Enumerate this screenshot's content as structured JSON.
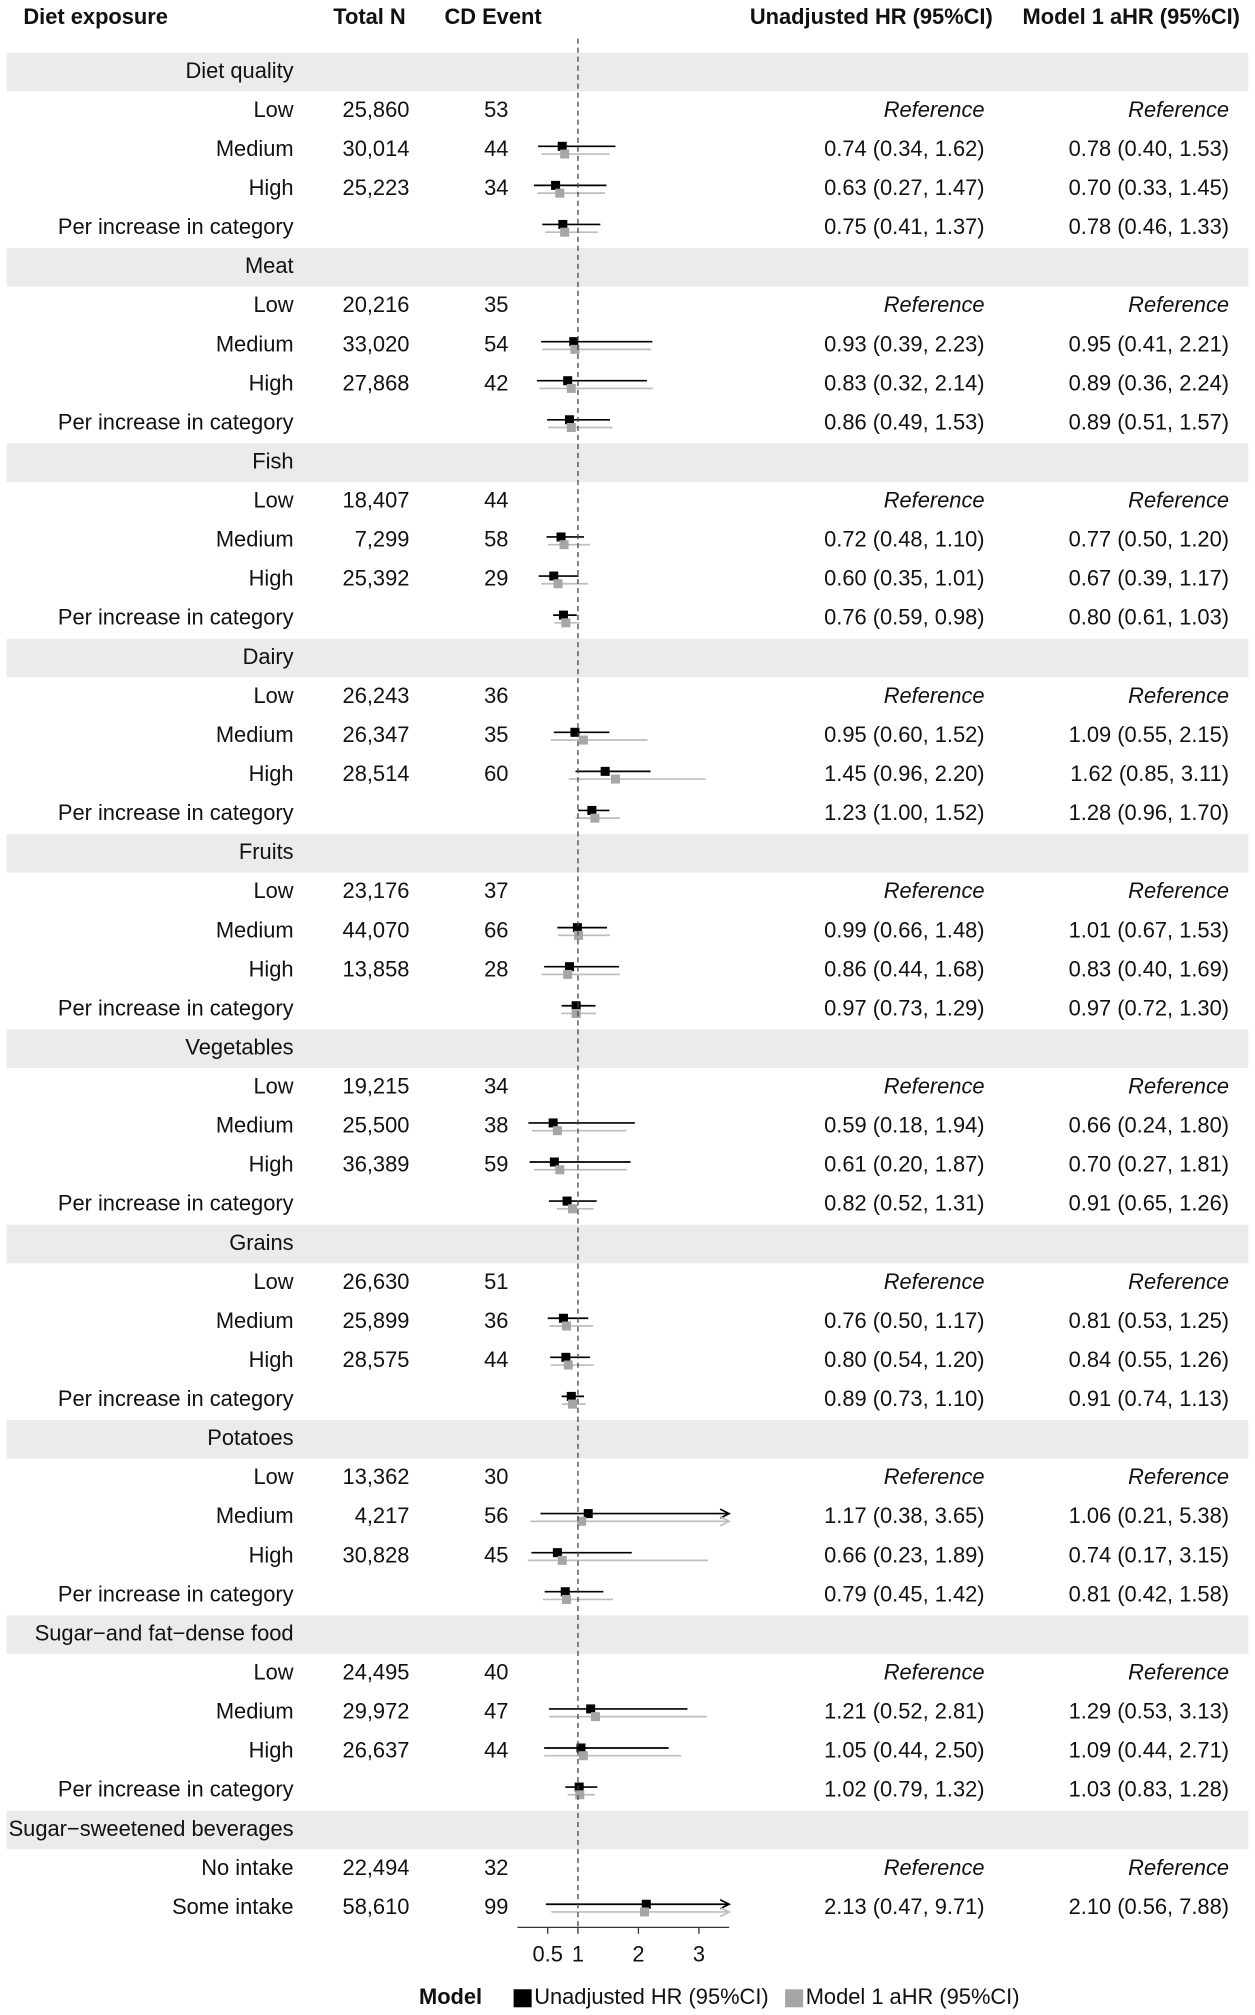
{
  "chart_data": {
    "type": "forest",
    "columns": [
      "Diet exposure",
      "Total N",
      "CD Event"
    ],
    "series": [
      {
        "name": "Unadjusted HR (95%CI)",
        "color": "#000000"
      },
      {
        "name": "Model 1 aHR (95%CI)",
        "color": "#a6a6a6"
      }
    ],
    "legend_title": "Model",
    "xlim": [
      0,
      3.5
    ],
    "xticks": [
      0.5,
      1,
      2,
      3
    ],
    "ref_line": 1,
    "groups": [
      {
        "name": "Diet quality",
        "rows": [
          {
            "label": "Low",
            "n": {
              "value": 25860,
              "label": "25,860"
            },
            "events": 53,
            "est": [
              {
                "label": "Reference"
              },
              {
                "label": "Reference"
              }
            ]
          },
          {
            "label": "Medium",
            "n": {
              "value": 30014,
              "label": "30,014"
            },
            "events": 44,
            "est": [
              {
                "hr": 0.74,
                "lo": 0.34,
                "hi": 1.62,
                "label": "0.74 (0.34, 1.62)"
              },
              {
                "hr": 0.78,
                "lo": 0.4,
                "hi": 1.53,
                "label": "0.78 (0.40, 1.53)"
              }
            ]
          },
          {
            "label": "High",
            "n": {
              "value": 25223,
              "label": "25,223"
            },
            "events": 34,
            "est": [
              {
                "hr": 0.63,
                "lo": 0.27,
                "hi": 1.47,
                "label": "0.63 (0.27, 1.47)"
              },
              {
                "hr": 0.7,
                "lo": 0.33,
                "hi": 1.45,
                "label": "0.70 (0.33, 1.45)"
              }
            ]
          },
          {
            "label": "Per increase in category",
            "est": [
              {
                "hr": 0.75,
                "lo": 0.41,
                "hi": 1.37,
                "label": "0.75 (0.41, 1.37)"
              },
              {
                "hr": 0.78,
                "lo": 0.46,
                "hi": 1.33,
                "label": "0.78 (0.46, 1.33)"
              }
            ]
          }
        ]
      },
      {
        "name": "Meat",
        "rows": [
          {
            "label": "Low",
            "n": {
              "value": 20216,
              "label": "20,216"
            },
            "events": 35,
            "est": [
              {
                "label": "Reference"
              },
              {
                "label": "Reference"
              }
            ]
          },
          {
            "label": "Medium",
            "n": {
              "value": 33020,
              "label": "33,020"
            },
            "events": 54,
            "est": [
              {
                "hr": 0.93,
                "lo": 0.39,
                "hi": 2.23,
                "label": "0.93 (0.39, 2.23)"
              },
              {
                "hr": 0.95,
                "lo": 0.41,
                "hi": 2.21,
                "label": "0.95 (0.41, 2.21)"
              }
            ]
          },
          {
            "label": "High",
            "n": {
              "value": 27868,
              "label": "27,868"
            },
            "events": 42,
            "est": [
              {
                "hr": 0.83,
                "lo": 0.32,
                "hi": 2.14,
                "label": "0.83 (0.32, 2.14)"
              },
              {
                "hr": 0.89,
                "lo": 0.36,
                "hi": 2.24,
                "label": "0.89 (0.36, 2.24)"
              }
            ]
          },
          {
            "label": "Per increase in category",
            "est": [
              {
                "hr": 0.86,
                "lo": 0.49,
                "hi": 1.53,
                "label": "0.86 (0.49, 1.53)"
              },
              {
                "hr": 0.89,
                "lo": 0.51,
                "hi": 1.57,
                "label": "0.89 (0.51, 1.57)"
              }
            ]
          }
        ]
      },
      {
        "name": "Fish",
        "rows": [
          {
            "label": "Low",
            "n": {
              "value": 18407,
              "label": "18,407"
            },
            "events": 44,
            "est": [
              {
                "label": "Reference"
              },
              {
                "label": "Reference"
              }
            ]
          },
          {
            "label": "Medium",
            "n": {
              "value": 7299,
              "label": "7,299"
            },
            "events": 58,
            "est": [
              {
                "hr": 0.72,
                "lo": 0.48,
                "hi": 1.1,
                "label": "0.72 (0.48, 1.10)"
              },
              {
                "hr": 0.77,
                "lo": 0.5,
                "hi": 1.2,
                "label": "0.77 (0.50, 1.20)"
              }
            ]
          },
          {
            "label": "High",
            "n": {
              "value": 25392,
              "label": "25,392"
            },
            "events": 29,
            "est": [
              {
                "hr": 0.6,
                "lo": 0.35,
                "hi": 1.01,
                "label": "0.60 (0.35, 1.01)"
              },
              {
                "hr": 0.67,
                "lo": 0.39,
                "hi": 1.17,
                "label": "0.67 (0.39, 1.17)"
              }
            ]
          },
          {
            "label": "Per increase in category",
            "est": [
              {
                "hr": 0.76,
                "lo": 0.59,
                "hi": 0.98,
                "label": "0.76 (0.59, 0.98)"
              },
              {
                "hr": 0.8,
                "lo": 0.61,
                "hi": 1.03,
                "label": "0.80 (0.61, 1.03)"
              }
            ]
          }
        ]
      },
      {
        "name": "Dairy",
        "rows": [
          {
            "label": "Low",
            "n": {
              "value": 26243,
              "label": "26,243"
            },
            "events": 36,
            "est": [
              {
                "label": "Reference"
              },
              {
                "label": "Reference"
              }
            ]
          },
          {
            "label": "Medium",
            "n": {
              "value": 26347,
              "label": "26,347"
            },
            "events": 35,
            "est": [
              {
                "hr": 0.95,
                "lo": 0.6,
                "hi": 1.52,
                "label": "0.95 (0.60, 1.52)"
              },
              {
                "hr": 1.09,
                "lo": 0.55,
                "hi": 2.15,
                "label": "1.09 (0.55, 2.15)"
              }
            ]
          },
          {
            "label": "High",
            "n": {
              "value": 28514,
              "label": "28,514"
            },
            "events": 60,
            "est": [
              {
                "hr": 1.45,
                "lo": 0.96,
                "hi": 2.2,
                "label": "1.45 (0.96, 2.20)"
              },
              {
                "hr": 1.62,
                "lo": 0.85,
                "hi": 3.11,
                "label": "1.62 (0.85, 3.11)"
              }
            ]
          },
          {
            "label": "Per increase in category",
            "est": [
              {
                "hr": 1.23,
                "lo": 1.0,
                "hi": 1.52,
                "label": "1.23 (1.00, 1.52)"
              },
              {
                "hr": 1.28,
                "lo": 0.96,
                "hi": 1.7,
                "label": "1.28 (0.96, 1.70)"
              }
            ]
          }
        ]
      },
      {
        "name": "Fruits",
        "rows": [
          {
            "label": "Low",
            "n": {
              "value": 23176,
              "label": "23,176"
            },
            "events": 37,
            "est": [
              {
                "label": "Reference"
              },
              {
                "label": "Reference"
              }
            ]
          },
          {
            "label": "Medium",
            "n": {
              "value": 44070,
              "label": "44,070"
            },
            "events": 66,
            "est": [
              {
                "hr": 0.99,
                "lo": 0.66,
                "hi": 1.48,
                "label": "0.99 (0.66, 1.48)"
              },
              {
                "hr": 1.01,
                "lo": 0.67,
                "hi": 1.53,
                "label": "1.01 (0.67, 1.53)"
              }
            ]
          },
          {
            "label": "High",
            "n": {
              "value": 13858,
              "label": "13,858"
            },
            "events": 28,
            "est": [
              {
                "hr": 0.86,
                "lo": 0.44,
                "hi": 1.68,
                "label": "0.86 (0.44, 1.68)"
              },
              {
                "hr": 0.83,
                "lo": 0.4,
                "hi": 1.69,
                "label": "0.83 (0.40, 1.69)"
              }
            ]
          },
          {
            "label": "Per increase in category",
            "est": [
              {
                "hr": 0.97,
                "lo": 0.73,
                "hi": 1.29,
                "label": "0.97 (0.73, 1.29)"
              },
              {
                "hr": 0.97,
                "lo": 0.72,
                "hi": 1.3,
                "label": "0.97 (0.72, 1.30)"
              }
            ]
          }
        ]
      },
      {
        "name": "Vegetables",
        "rows": [
          {
            "label": "Low",
            "n": {
              "value": 19215,
              "label": "19,215"
            },
            "events": 34,
            "est": [
              {
                "label": "Reference"
              },
              {
                "label": "Reference"
              }
            ]
          },
          {
            "label": "Medium",
            "n": {
              "value": 25500,
              "label": "25,500"
            },
            "events": 38,
            "est": [
              {
                "hr": 0.59,
                "lo": 0.18,
                "hi": 1.94,
                "label": "0.59 (0.18, 1.94)"
              },
              {
                "hr": 0.66,
                "lo": 0.24,
                "hi": 1.8,
                "label": "0.66 (0.24, 1.80)"
              }
            ]
          },
          {
            "label": "High",
            "n": {
              "value": 36389,
              "label": "36,389"
            },
            "events": 59,
            "est": [
              {
                "hr": 0.61,
                "lo": 0.2,
                "hi": 1.87,
                "label": "0.61 (0.20, 1.87)"
              },
              {
                "hr": 0.7,
                "lo": 0.27,
                "hi": 1.81,
                "label": "0.70 (0.27, 1.81)"
              }
            ]
          },
          {
            "label": "Per increase in category",
            "est": [
              {
                "hr": 0.82,
                "lo": 0.52,
                "hi": 1.31,
                "label": "0.82 (0.52, 1.31)"
              },
              {
                "hr": 0.91,
                "lo": 0.65,
                "hi": 1.26,
                "label": "0.91 (0.65, 1.26)"
              }
            ]
          }
        ]
      },
      {
        "name": "Grains",
        "rows": [
          {
            "label": "Low",
            "n": {
              "value": 26630,
              "label": "26,630"
            },
            "events": 51,
            "est": [
              {
                "label": "Reference"
              },
              {
                "label": "Reference"
              }
            ]
          },
          {
            "label": "Medium",
            "n": {
              "value": 25899,
              "label": "25,899"
            },
            "events": 36,
            "est": [
              {
                "hr": 0.76,
                "lo": 0.5,
                "hi": 1.17,
                "label": "0.76 (0.50, 1.17)"
              },
              {
                "hr": 0.81,
                "lo": 0.53,
                "hi": 1.25,
                "label": "0.81 (0.53, 1.25)"
              }
            ]
          },
          {
            "label": "High",
            "n": {
              "value": 28575,
              "label": "28,575"
            },
            "events": 44,
            "est": [
              {
                "hr": 0.8,
                "lo": 0.54,
                "hi": 1.2,
                "label": "0.80 (0.54, 1.20)"
              },
              {
                "hr": 0.84,
                "lo": 0.55,
                "hi": 1.26,
                "label": "0.84 (0.55, 1.26)"
              }
            ]
          },
          {
            "label": "Per increase in category",
            "est": [
              {
                "hr": 0.89,
                "lo": 0.73,
                "hi": 1.1,
                "label": "0.89 (0.73, 1.10)"
              },
              {
                "hr": 0.91,
                "lo": 0.74,
                "hi": 1.13,
                "label": "0.91 (0.74, 1.13)"
              }
            ]
          }
        ]
      },
      {
        "name": "Potatoes",
        "rows": [
          {
            "label": "Low",
            "n": {
              "value": 13362,
              "label": "13,362"
            },
            "events": 30,
            "est": [
              {
                "label": "Reference"
              },
              {
                "label": "Reference"
              }
            ]
          },
          {
            "label": "Medium",
            "n": {
              "value": 4217,
              "label": "4,217"
            },
            "events": 56,
            "est": [
              {
                "hr": 1.17,
                "lo": 0.38,
                "hi": 3.65,
                "label": "1.17 (0.38, 3.65)"
              },
              {
                "hr": 1.06,
                "lo": 0.21,
                "hi": 5.38,
                "label": "1.06 (0.21, 5.38)"
              }
            ]
          },
          {
            "label": "High",
            "n": {
              "value": 30828,
              "label": "30,828"
            },
            "events": 45,
            "est": [
              {
                "hr": 0.66,
                "lo": 0.23,
                "hi": 1.89,
                "label": "0.66 (0.23, 1.89)"
              },
              {
                "hr": 0.74,
                "lo": 0.17,
                "hi": 3.15,
                "label": "0.74 (0.17, 3.15)"
              }
            ]
          },
          {
            "label": "Per increase in category",
            "est": [
              {
                "hr": 0.79,
                "lo": 0.45,
                "hi": 1.42,
                "label": "0.79 (0.45, 1.42)"
              },
              {
                "hr": 0.81,
                "lo": 0.42,
                "hi": 1.58,
                "label": "0.81 (0.42, 1.58)"
              }
            ]
          }
        ]
      },
      {
        "name": "Sugar−and fat−dense food",
        "rows": [
          {
            "label": "Low",
            "n": {
              "value": 24495,
              "label": "24,495"
            },
            "events": 40,
            "est": [
              {
                "label": "Reference"
              },
              {
                "label": "Reference"
              }
            ]
          },
          {
            "label": "Medium",
            "n": {
              "value": 29972,
              "label": "29,972"
            },
            "events": 47,
            "est": [
              {
                "hr": 1.21,
                "lo": 0.52,
                "hi": 2.81,
                "label": "1.21 (0.52, 2.81)"
              },
              {
                "hr": 1.29,
                "lo": 0.53,
                "hi": 3.13,
                "label": "1.29 (0.53, 3.13)"
              }
            ]
          },
          {
            "label": "High",
            "n": {
              "value": 26637,
              "label": "26,637"
            },
            "events": 44,
            "est": [
              {
                "hr": 1.05,
                "lo": 0.44,
                "hi": 2.5,
                "label": "1.05 (0.44, 2.50)"
              },
              {
                "hr": 1.09,
                "lo": 0.44,
                "hi": 2.71,
                "label": "1.09 (0.44, 2.71)"
              }
            ]
          },
          {
            "label": "Per increase in category",
            "est": [
              {
                "hr": 1.02,
                "lo": 0.79,
                "hi": 1.32,
                "label": "1.02 (0.79, 1.32)"
              },
              {
                "hr": 1.03,
                "lo": 0.83,
                "hi": 1.28,
                "label": "1.03 (0.83, 1.28)"
              }
            ]
          }
        ]
      },
      {
        "name": "Sugar−sweetened beverages",
        "rows": [
          {
            "label": "No intake",
            "n": {
              "value": 22494,
              "label": "22,494"
            },
            "events": 32,
            "est": [
              {
                "label": "Reference"
              },
              {
                "label": "Reference"
              }
            ]
          },
          {
            "label": "Some intake",
            "n": {
              "value": 58610,
              "label": "58,610"
            },
            "events": 99,
            "est": [
              {
                "hr": 2.13,
                "lo": 0.47,
                "hi": 9.71,
                "label": "2.13 (0.47, 9.71)"
              },
              {
                "hr": 2.1,
                "lo": 0.56,
                "hi": 7.88,
                "label": "2.10 (0.56, 7.88)"
              }
            ]
          }
        ]
      }
    ]
  }
}
